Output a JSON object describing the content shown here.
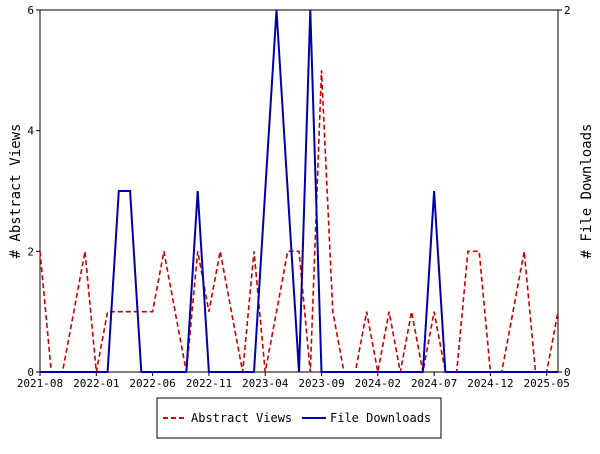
{
  "chart_data": {
    "type": "line",
    "title": "",
    "xlabel": "",
    "ylabel": "# Abstract Views",
    "y2label": "# File Downloads",
    "x_ticks": [
      "2021-08",
      "2022-01",
      "2022-06",
      "2022-11",
      "2023-04",
      "2023-09",
      "2024-02",
      "2024-07",
      "2024-12",
      "2025-05"
    ],
    "x": [
      "2021-08",
      "2021-09",
      "2021-10",
      "2021-11",
      "2021-12",
      "2022-01",
      "2022-02",
      "2022-03",
      "2022-04",
      "2022-05",
      "2022-06",
      "2022-07",
      "2022-08",
      "2022-09",
      "2022-10",
      "2022-11",
      "2022-12",
      "2023-01",
      "2023-02",
      "2023-03",
      "2023-04",
      "2023-05",
      "2023-06",
      "2023-07",
      "2023-08",
      "2023-09",
      "2023-10",
      "2023-11",
      "2023-12",
      "2024-01",
      "2024-02",
      "2024-03",
      "2024-04",
      "2024-05",
      "2024-06",
      "2024-07",
      "2024-08",
      "2024-09",
      "2024-10",
      "2024-11",
      "2024-12",
      "2025-01",
      "2025-02",
      "2025-03",
      "2025-04",
      "2025-05",
      "2025-06"
    ],
    "ylim": [
      0,
      6
    ],
    "y_ticks": [
      0,
      2,
      4,
      6
    ],
    "y2lim": [
      0,
      2
    ],
    "y2_ticks": [
      0,
      2
    ],
    "grid": false,
    "legend_position": "bottom",
    "series": [
      {
        "name": "Abstract Views",
        "axis": "left",
        "style": "dashed",
        "color": "#cc0000",
        "values": [
          2,
          0,
          0,
          1,
          2,
          0,
          1,
          1,
          1,
          1,
          1,
          2,
          1,
          0,
          2,
          1,
          2,
          1,
          0,
          2,
          0,
          1,
          2,
          2,
          0,
          5,
          1,
          0,
          0,
          1,
          0,
          1,
          0,
          1,
          0,
          1,
          0,
          0,
          2,
          2,
          0,
          0,
          1,
          2,
          0,
          0,
          1
        ]
      },
      {
        "name": "File Downloads",
        "axis": "right",
        "style": "solid",
        "color": "#0000aa",
        "values": [
          0,
          0,
          0,
          0,
          0,
          0,
          0,
          1,
          1,
          0,
          0,
          0,
          0,
          0,
          1,
          0,
          0,
          0,
          0,
          0,
          1,
          2,
          1,
          0,
          2,
          0,
          0,
          0,
          0,
          0,
          0,
          0,
          0,
          0,
          0,
          1,
          0,
          0,
          0,
          0,
          0,
          0,
          0,
          0,
          0,
          0,
          0
        ]
      }
    ]
  }
}
